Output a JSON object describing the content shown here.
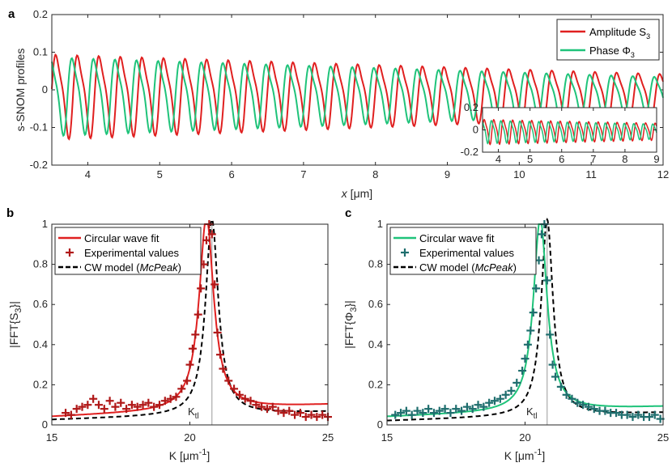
{
  "colors": {
    "amplitude": "#e02020",
    "phase": "#1fc37a",
    "exp_b": "#b01818",
    "exp_c": "#1f6e6e",
    "model": "#000000",
    "kline": "#999999"
  },
  "chart_data": [
    {
      "panel": "a",
      "type": "line",
      "xlabel_italic": "x",
      "xlabel_rest": " [μm]",
      "ylabel": "s-SNOM profiles",
      "xlim": [
        3.5,
        12
      ],
      "ylim": [
        -0.2,
        0.2
      ],
      "xticks": [
        "4",
        "5",
        "6",
        "7",
        "8",
        "9",
        "10",
        "11",
        "12"
      ],
      "yticks": [
        "-0.2",
        "-0.1",
        "0",
        "0.1",
        "0.2"
      ],
      "wave_period_um": 0.3,
      "series": [
        {
          "name": "Amplitude S",
          "sub": "3",
          "amp_start": 0.13,
          "amp_end": 0.065,
          "phase_offset": 0
        },
        {
          "name": "Phase Φ",
          "sub": "3",
          "amp_start": 0.12,
          "amp_end": 0.055,
          "phase_offset": 1.57
        }
      ],
      "inset": {
        "xlim": [
          3.5,
          9
        ],
        "ylim": [
          -0.2,
          0.2
        ],
        "xticks": [
          "4",
          "5",
          "6",
          "7",
          "8",
          "9"
        ],
        "yticks": [
          "-0.2",
          "0",
          "0.2"
        ]
      }
    },
    {
      "panel": "b",
      "type": "line",
      "xlabel": "K [μm",
      "xlabel_sup": "-1",
      "ylabel": "|FFT{S",
      "ylabel_sub": "3",
      "ylabel_end": "}|",
      "xlim": [
        15,
        25
      ],
      "ylim": [
        0,
        1
      ],
      "xticks": [
        "15",
        "20",
        "25"
      ],
      "yticks": [
        "0",
        "0.2",
        "0.4",
        "0.6",
        "0.8",
        "1"
      ],
      "peak_K": 20.8,
      "k_label": "K",
      "k_sub": "tl",
      "legend": [
        "Circular wave fit",
        "Experimental values",
        "CW model ("
      ],
      "legend_model_italic": "McPeak",
      "legend_model_end": ")",
      "fit": {
        "center": 20.6,
        "width": 0.32,
        "baseline": 0.04,
        "slope": 0.006
      },
      "model": {
        "center": 20.8,
        "width": 0.28,
        "baseline": 0.025,
        "slope": 0.004
      },
      "experimental_points": [
        [
          15.5,
          0.06
        ],
        [
          15.7,
          0.05
        ],
        [
          15.9,
          0.08
        ],
        [
          16.1,
          0.09
        ],
        [
          16.3,
          0.1
        ],
        [
          16.5,
          0.13
        ],
        [
          16.7,
          0.1
        ],
        [
          16.9,
          0.08
        ],
        [
          17.1,
          0.12
        ],
        [
          17.3,
          0.09
        ],
        [
          17.5,
          0.11
        ],
        [
          17.7,
          0.08
        ],
        [
          17.9,
          0.1
        ],
        [
          18.1,
          0.09
        ],
        [
          18.3,
          0.1
        ],
        [
          18.5,
          0.11
        ],
        [
          18.7,
          0.09
        ],
        [
          18.9,
          0.1
        ],
        [
          19.1,
          0.12
        ],
        [
          19.3,
          0.13
        ],
        [
          19.5,
          0.14
        ],
        [
          19.7,
          0.18
        ],
        [
          19.9,
          0.22
        ],
        [
          20.0,
          0.3
        ],
        [
          20.1,
          0.38
        ],
        [
          20.2,
          0.45
        ],
        [
          20.3,
          0.55
        ],
        [
          20.4,
          0.68
        ],
        [
          20.5,
          0.8
        ],
        [
          20.6,
          0.92
        ],
        [
          20.7,
          1.0
        ],
        [
          20.8,
          0.95
        ],
        [
          20.9,
          0.7
        ],
        [
          21.0,
          0.46
        ],
        [
          21.1,
          0.35
        ],
        [
          21.2,
          0.28
        ],
        [
          21.4,
          0.22
        ],
        [
          21.6,
          0.18
        ],
        [
          21.8,
          0.15
        ],
        [
          22.0,
          0.13
        ],
        [
          22.2,
          0.12
        ],
        [
          22.4,
          0.1
        ],
        [
          22.6,
          0.09
        ],
        [
          22.8,
          0.08
        ],
        [
          23.0,
          0.09
        ],
        [
          23.2,
          0.07
        ],
        [
          23.4,
          0.06
        ],
        [
          23.6,
          0.07
        ],
        [
          23.8,
          0.05
        ],
        [
          24.0,
          0.06
        ],
        [
          24.2,
          0.04
        ],
        [
          24.4,
          0.05
        ],
        [
          24.6,
          0.04
        ],
        [
          24.8,
          0.05
        ],
        [
          25.0,
          0.04
        ]
      ]
    },
    {
      "panel": "c",
      "type": "line",
      "xlabel": "K [μm",
      "xlabel_sup": "-1",
      "ylabel": "|FFT{Φ",
      "ylabel_sub": "3",
      "ylabel_end": "}|",
      "xlim": [
        15,
        25
      ],
      "ylim": [
        0,
        1
      ],
      "xticks": [
        "15",
        "20",
        "25"
      ],
      "yticks": [
        "0",
        "0.2",
        "0.4",
        "0.6",
        "0.8",
        "1"
      ],
      "peak_K": 20.8,
      "k_label": "K",
      "k_sub": "tl",
      "legend": [
        "Circular wave fit",
        "Experimental values",
        "CW model ("
      ],
      "legend_model_italic": "McPeak",
      "legend_model_end": ")",
      "fit": {
        "center": 20.55,
        "width": 0.3,
        "baseline": 0.04,
        "slope": 0.005
      },
      "model": {
        "center": 20.8,
        "width": 0.26,
        "baseline": 0.02,
        "slope": 0.004
      },
      "experimental_points": [
        [
          15.3,
          0.05
        ],
        [
          15.5,
          0.06
        ],
        [
          15.7,
          0.07
        ],
        [
          15.9,
          0.05
        ],
        [
          16.1,
          0.07
        ],
        [
          16.3,
          0.06
        ],
        [
          16.5,
          0.08
        ],
        [
          16.7,
          0.06
        ],
        [
          16.9,
          0.07
        ],
        [
          17.1,
          0.08
        ],
        [
          17.3,
          0.06
        ],
        [
          17.5,
          0.08
        ],
        [
          17.7,
          0.07
        ],
        [
          17.9,
          0.09
        ],
        [
          18.1,
          0.08
        ],
        [
          18.3,
          0.1
        ],
        [
          18.5,
          0.09
        ],
        [
          18.7,
          0.11
        ],
        [
          18.9,
          0.12
        ],
        [
          19.1,
          0.13
        ],
        [
          19.3,
          0.15
        ],
        [
          19.5,
          0.17
        ],
        [
          19.7,
          0.21
        ],
        [
          19.9,
          0.27
        ],
        [
          20.0,
          0.33
        ],
        [
          20.1,
          0.4
        ],
        [
          20.2,
          0.47
        ],
        [
          20.3,
          0.56
        ],
        [
          20.4,
          0.68
        ],
        [
          20.5,
          0.82
        ],
        [
          20.6,
          0.95
        ],
        [
          20.7,
          1.0
        ],
        [
          20.8,
          0.72
        ],
        [
          20.9,
          0.45
        ],
        [
          21.0,
          0.3
        ],
        [
          21.1,
          0.24
        ],
        [
          21.3,
          0.19
        ],
        [
          21.5,
          0.15
        ],
        [
          21.7,
          0.13
        ],
        [
          21.9,
          0.11
        ],
        [
          22.1,
          0.1
        ],
        [
          22.3,
          0.09
        ],
        [
          22.5,
          0.08
        ],
        [
          22.7,
          0.07
        ],
        [
          22.9,
          0.07
        ],
        [
          23.1,
          0.06
        ],
        [
          23.3,
          0.06
        ],
        [
          23.5,
          0.05
        ],
        [
          23.7,
          0.05
        ],
        [
          23.9,
          0.04
        ],
        [
          24.1,
          0.05
        ],
        [
          24.3,
          0.04
        ],
        [
          24.5,
          0.04
        ],
        [
          24.7,
          0.05
        ],
        [
          24.9,
          0.03
        ]
      ]
    }
  ]
}
